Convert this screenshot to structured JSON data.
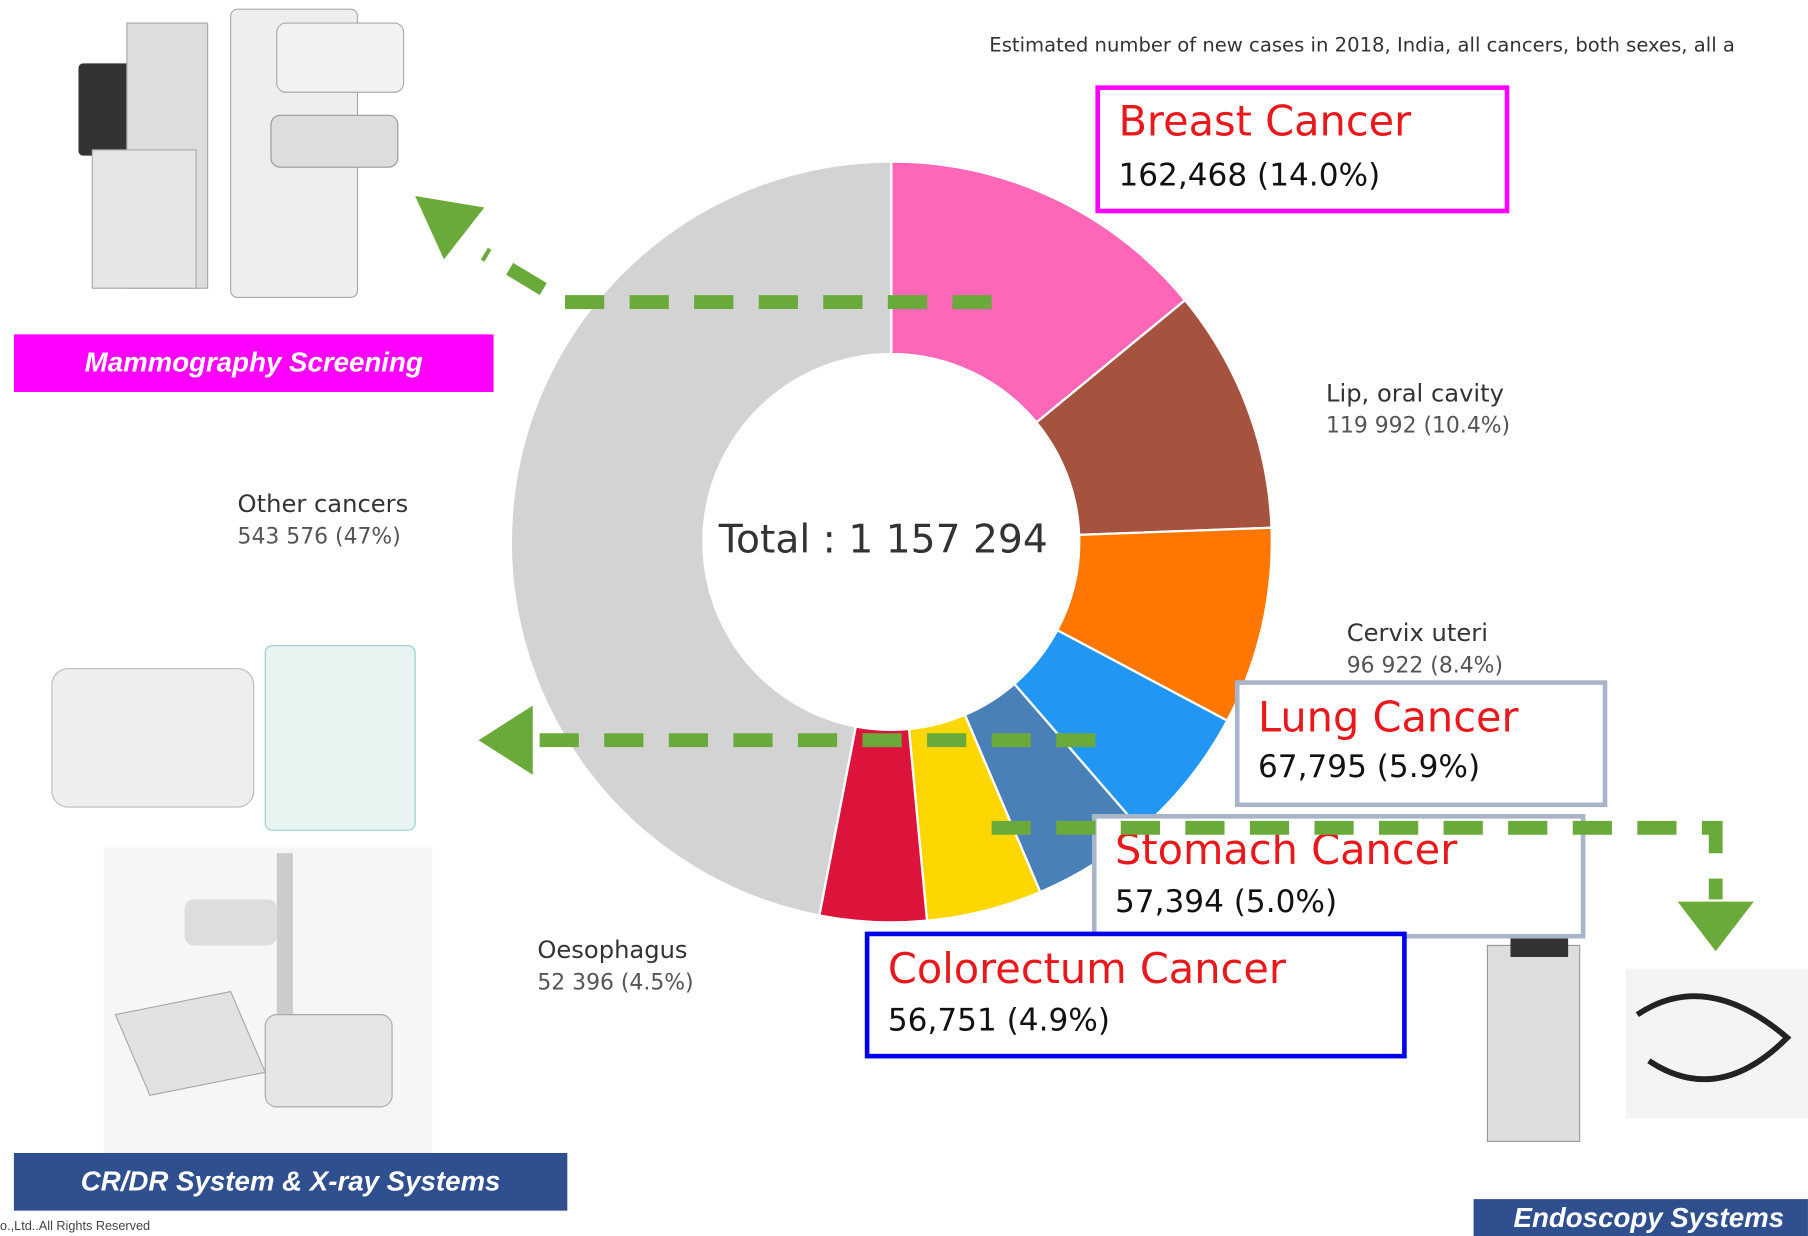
{
  "chart_data": {
    "type": "donut",
    "subtitle": "Estimated number of new cases in 2018, India, all cancers, both sexes, all a",
    "center_text": "Total : 1 157 294",
    "categories": [
      "Breast Cancer",
      "Lip, oral cavity",
      "Cervix uteri",
      "Lung Cancer",
      "Stomach Cancer",
      "Colorectum Cancer",
      "Oesophagus",
      "Other cancers"
    ],
    "values": [
      162468,
      119992,
      96922,
      67795,
      57394,
      56751,
      52396,
      543576
    ],
    "value_labels": [
      "162,468 (14.0%)",
      "119 992 (10.4%)",
      "96 922 (8.4%)",
      "67,795 (5.9%)",
      "57,394 (5.0%)",
      "56,751 (4.9%)",
      "52 396 (4.5%)",
      "543 576 (47%)"
    ],
    "colors": [
      "#fe66b8",
      "#a5533e",
      "#ff7700",
      "#2196f3",
      "#4a80b8",
      "#ffd700",
      "#dc143c",
      "#d3d3d3"
    ],
    "captions": [
      "Mammography Screening",
      "CR/DR System & X-ray Systems",
      "Endoscopy Systems"
    ],
    "footer": "o.,Ltd..All Rights Reserved"
  }
}
